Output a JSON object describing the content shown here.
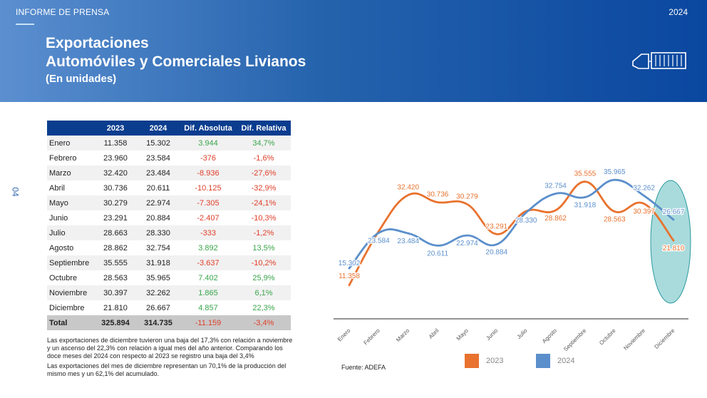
{
  "header": {
    "left_label": "INFORME DE PRENSA",
    "year": "2024"
  },
  "title": {
    "line1": "Exportaciones",
    "line2": "Automóviles y Comerciales Livianos",
    "line3": "(En unidades)"
  },
  "page_number": "04",
  "table": {
    "columns": [
      "",
      "2023",
      "2024",
      "Dif. Absoluta",
      "Dif. Relativa"
    ],
    "rows": [
      {
        "month": "Enero",
        "y2023": "11.358",
        "y2024": "15.302",
        "abs": "3.944",
        "rel": "34,7%"
      },
      {
        "month": "Febrero",
        "y2023": "23.960",
        "y2024": "23.584",
        "abs": "-376",
        "rel": "-1,6%"
      },
      {
        "month": "Marzo",
        "y2023": "32.420",
        "y2024": "23.484",
        "abs": "-8.936",
        "rel": "-27,6%"
      },
      {
        "month": "Abril",
        "y2023": "30.736",
        "y2024": "20.611",
        "abs": "-10.125",
        "rel": "-32,9%"
      },
      {
        "month": "Mayo",
        "y2023": "30.279",
        "y2024": "22.974",
        "abs": "-7.305",
        "rel": "-24,1%"
      },
      {
        "month": "Junio",
        "y2023": "23.291",
        "y2024": "20.884",
        "abs": "-2.407",
        "rel": "-10,3%"
      },
      {
        "month": "Julio",
        "y2023": "28.663",
        "y2024": "28.330",
        "abs": "-333",
        "rel": "-1,2%"
      },
      {
        "month": "Agosto",
        "y2023": "28.862",
        "y2024": "32.754",
        "abs": "3.892",
        "rel": "13,5%"
      },
      {
        "month": "Septiembre",
        "y2023": "35.555",
        "y2024": "31.918",
        "abs": "-3.637",
        "rel": "-10,2%"
      },
      {
        "month": "Octubre",
        "y2023": "28.563",
        "y2024": "35.965",
        "abs": "7.402",
        "rel": "25,9%"
      },
      {
        "month": "Noviembre",
        "y2023": "30.397",
        "y2024": "32.262",
        "abs": "1.865",
        "rel": "6,1%"
      },
      {
        "month": "Diciembre",
        "y2023": "21.810",
        "y2024": "26.667",
        "abs": "4.857",
        "rel": "22,3%"
      }
    ],
    "total": {
      "label": "Total",
      "y2023": "325.894",
      "y2024": "314.735",
      "abs": "-11.159",
      "rel": "-3,4%"
    }
  },
  "notes": [
    "Las exportaciones de diciembre tuvieron una baja del 17,3% con relación a noviembre y un ascenso del 22,3% con relación a igual mes del año anterior. Comparando los doce meses del 2024 con respecto al 2023 se registro una baja del 3,4%",
    "Las exportaciones del mes de diciembre representan un 70,1% de la producción del mismo mes y un 62,1% del acumulado."
  ],
  "source": "Fuente: ADEFA",
  "colors": {
    "header": "#0a47a0",
    "series2023": "#e8722e",
    "series2024": "#5b8fcb",
    "highlight": "#8ccfd0",
    "positive": "#3aa64c",
    "negative": "#e0402b"
  },
  "chart_data": {
    "type": "line",
    "categories": [
      "Enero",
      "Febrero",
      "Marzo",
      "Abril",
      "Mayo",
      "Junio",
      "Julio",
      "Agosto",
      "Septiembre",
      "Octubre",
      "Noviembre",
      "Diciembre"
    ],
    "series": [
      {
        "name": "2023",
        "values": [
          11358,
          23960,
          32420,
          30736,
          30279,
          23291,
          28663,
          28862,
          35555,
          28563,
          30397,
          21810
        ],
        "labels": [
          "11.358",
          "",
          "32.420",
          "30.736",
          "30.279",
          "23.291",
          "",
          "28.862",
          "35.555",
          "28.563",
          "30.397",
          "21.810"
        ]
      },
      {
        "name": "2024",
        "values": [
          15302,
          23584,
          23484,
          20611,
          22974,
          20884,
          28330,
          32754,
          31918,
          35965,
          32262,
          26667
        ],
        "labels": [
          "15.302",
          "23.584",
          "23.484",
          "20.611",
          "22.974",
          "20.884",
          "28.330",
          "32.754",
          "31.918",
          "35.965",
          "32.262",
          "26.667"
        ]
      }
    ],
    "ylim": [
      8000,
      38000
    ],
    "highlight_category": "Diciembre",
    "legend": [
      "2023",
      "2024"
    ]
  }
}
